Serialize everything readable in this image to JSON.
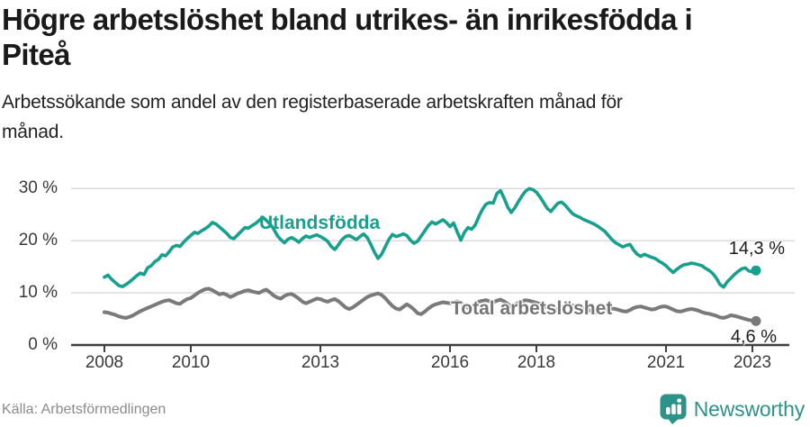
{
  "header": {
    "title_lines": [
      "Högre arbetslöshet bland utrikes- än inrikesfödda i",
      "Piteå"
    ],
    "subtitle_lines": [
      "Arbetssökande som andel av den registerbaserade arbetskraften månad för",
      "månad."
    ]
  },
  "chart": {
    "series_labels": {
      "utlandsfodda": "Utlandsfödda",
      "total": "Total arbetslöshet"
    },
    "end_labels": {
      "utlandsfodda": "14,3 %",
      "total": "4,6 %"
    },
    "colors": {
      "utlandsfodda": "#17a08e",
      "total": "#7a7a7a",
      "total_label": "#757575",
      "gridline": "#d8d8d8",
      "axis": "#3f3f3f",
      "axis_text": "#3a3a3a",
      "value_text": "#1d1d1d",
      "brand_teal": "#2d9289"
    }
  },
  "chart_data": {
    "type": "line",
    "title": "Högre arbetslöshet bland utrikes- än inrikesfödda i Piteå",
    "subtitle": "Arbetssökande som andel av den registerbaserade arbetskraften månad för månad.",
    "x_unit": "month",
    "x_start": "2008-01",
    "x_end": "2023-02",
    "x_tick_years": [
      2008,
      2010,
      2013,
      2016,
      2018,
      2021,
      2023
    ],
    "y_ticks_percent": [
      0,
      10,
      20,
      30
    ],
    "y_tick_labels": [
      "0 %",
      "10 %",
      "20 %",
      "30 %"
    ],
    "ylim": [
      0,
      32
    ],
    "grid": "horizontal",
    "legend_position": "inline-labels",
    "series": [
      {
        "name": "Utlandsfödda",
        "color": "#17a08e",
        "end_label": "14,3 %",
        "last_value": 14.3,
        "values": [
          13.0,
          13.4,
          12.6,
          12.0,
          11.4,
          11.2,
          11.6,
          12.1,
          12.7,
          13.3,
          13.8,
          13.5,
          14.8,
          15.2,
          16.0,
          16.4,
          17.3,
          17.1,
          17.9,
          18.8,
          19.1,
          18.9,
          19.7,
          20.4,
          21.0,
          21.6,
          21.4,
          21.9,
          22.3,
          22.8,
          23.5,
          23.2,
          22.6,
          22.0,
          21.4,
          20.6,
          20.4,
          21.1,
          21.8,
          22.5,
          22.4,
          22.9,
          23.3,
          23.9,
          24.5,
          23.9,
          23.2,
          22.3,
          21.0,
          20.2,
          19.6,
          20.3,
          20.6,
          20.2,
          19.7,
          20.4,
          20.9,
          20.6,
          20.9,
          21.1,
          20.8,
          20.4,
          19.9,
          18.9,
          18.3,
          19.2,
          20.2,
          20.8,
          21.0,
          20.6,
          20.2,
          20.8,
          21.3,
          20.6,
          19.3,
          17.8,
          16.6,
          17.4,
          18.8,
          20.2,
          21.2,
          20.8,
          21.0,
          21.3,
          21.0,
          20.1,
          19.5,
          19.9,
          20.9,
          21.9,
          22.9,
          23.6,
          23.2,
          23.6,
          24.0,
          23.5,
          22.7,
          23.4,
          21.7,
          20.1,
          21.6,
          22.5,
          22.2,
          23.0,
          24.6,
          26.0,
          27.0,
          27.3,
          27.2,
          29.0,
          29.6,
          28.2,
          26.5,
          25.4,
          26.3,
          27.5,
          28.6,
          29.5,
          30.0,
          29.8,
          29.3,
          28.4,
          27.3,
          26.2,
          25.6,
          26.4,
          27.2,
          27.4,
          26.8,
          26.0,
          25.2,
          24.8,
          24.5,
          24.1,
          23.8,
          23.5,
          23.2,
          22.8,
          22.3,
          21.8,
          21.0,
          20.2,
          19.6,
          19.2,
          18.8,
          19.1,
          19.3,
          18.2,
          17.4,
          17.0,
          17.4,
          17.1,
          16.8,
          16.6,
          16.1,
          15.7,
          15.2,
          14.5,
          13.9,
          14.5,
          15.0,
          15.4,
          15.5,
          15.7,
          15.6,
          15.4,
          15.2,
          14.7,
          14.3,
          13.7,
          12.8,
          11.6,
          11.1,
          12.1,
          12.8,
          13.5,
          14.1,
          14.6,
          14.8,
          14.2,
          14.0,
          14.3
        ]
      },
      {
        "name": "Total arbetslöshet",
        "color": "#7a7a7a",
        "end_label": "4,6 %",
        "last_value": 4.6,
        "values": [
          6.3,
          6.2,
          6.0,
          5.8,
          5.5,
          5.3,
          5.2,
          5.4,
          5.7,
          6.1,
          6.5,
          6.8,
          7.1,
          7.4,
          7.7,
          8.0,
          8.3,
          8.5,
          8.6,
          8.3,
          8.0,
          7.9,
          8.4,
          8.8,
          9.0,
          9.5,
          10.0,
          10.4,
          10.7,
          10.8,
          10.5,
          10.1,
          9.7,
          9.9,
          9.6,
          9.2,
          9.5,
          9.9,
          10.1,
          10.4,
          10.5,
          10.3,
          10.1,
          10.0,
          10.4,
          10.6,
          10.1,
          9.5,
          9.1,
          8.9,
          9.4,
          9.7,
          9.8,
          9.4,
          8.9,
          8.3,
          8.0,
          8.3,
          8.6,
          8.9,
          8.8,
          8.5,
          8.3,
          8.6,
          8.8,
          8.4,
          7.8,
          7.2,
          6.9,
          7.2,
          7.7,
          8.2,
          8.7,
          9.2,
          9.5,
          9.7,
          9.9,
          9.6,
          9.0,
          8.2,
          7.5,
          7.0,
          6.8,
          7.3,
          7.8,
          7.4,
          6.8,
          6.1,
          5.9,
          6.4,
          7.0,
          7.5,
          7.8,
          8.0,
          8.2,
          8.1,
          8.0,
          8.2,
          8.4,
          8.1,
          7.6,
          7.1,
          7.4,
          7.9,
          8.3,
          8.5,
          8.6,
          8.4,
          8.2,
          8.5,
          8.7,
          8.4,
          7.9,
          7.4,
          7.7,
          8.1,
          8.4,
          8.6,
          8.5,
          8.3,
          8.1,
          7.9,
          7.6,
          7.2,
          6.8,
          6.6,
          6.9,
          7.2,
          7.5,
          7.7,
          7.6,
          7.4,
          7.2,
          7.0,
          6.8,
          6.6,
          6.4,
          6.2,
          6.5,
          6.7,
          6.9,
          7.0,
          6.9,
          6.7,
          6.5,
          6.4,
          6.7,
          7.1,
          7.3,
          7.4,
          7.2,
          7.0,
          6.8,
          6.9,
          7.2,
          7.4,
          7.4,
          7.1,
          6.8,
          6.5,
          6.4,
          6.6,
          6.8,
          6.9,
          6.8,
          6.6,
          6.3,
          6.1,
          6.0,
          5.8,
          5.6,
          5.3,
          5.2,
          5.4,
          5.7,
          5.6,
          5.4,
          5.2,
          5.0,
          4.8,
          4.7,
          4.6
        ]
      }
    ]
  },
  "footer": {
    "source": "Källa: Arbetsförmedlingen",
    "brand": "Newsworthy"
  }
}
